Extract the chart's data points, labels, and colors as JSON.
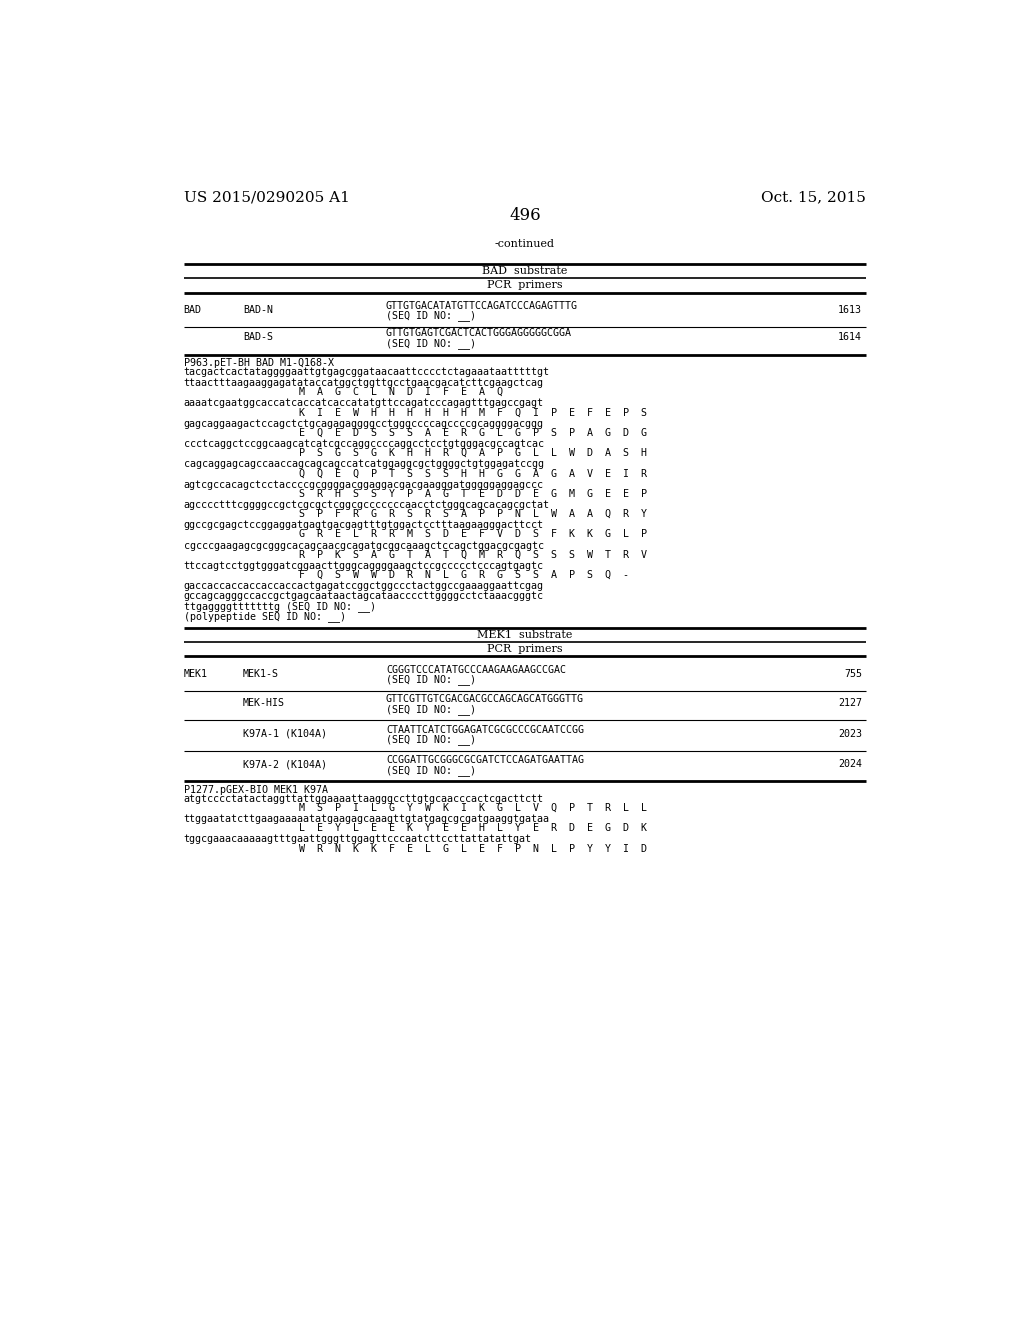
{
  "page_header_left": "US 2015/0290205 A1",
  "page_header_right": "Oct. 15, 2015",
  "page_number": "496",
  "continued": "-continued",
  "background_color": "#ffffff",
  "text_color": "#000000",
  "tl": 0.07,
  "tr": 0.93,
  "mono_fs": 7.2,
  "body_fs": 8.0,
  "header_fs": 11
}
